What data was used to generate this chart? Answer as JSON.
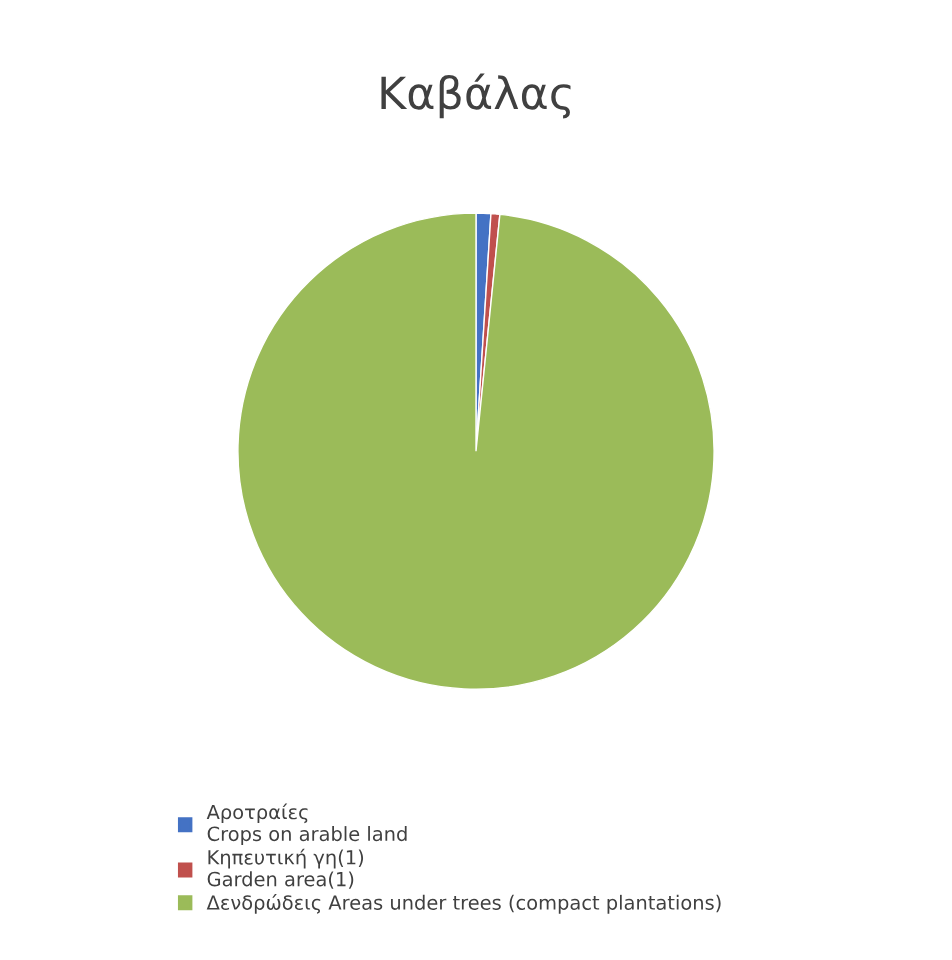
{
  "chart_data": {
    "type": "pie",
    "title": "Καβάλας",
    "categories": [
      "Αροτραίες\nCrops on arable land",
      "Κηπευτική γη(1)\nGarden area(1)",
      "Δενδρώδεις Areas under trees (compact plantations)"
    ],
    "values": [
      1.0,
      0.6,
      98.4
    ],
    "colors": [
      "#4472c4",
      "#c0504d",
      "#9bbb59"
    ],
    "legend": "bottom"
  }
}
